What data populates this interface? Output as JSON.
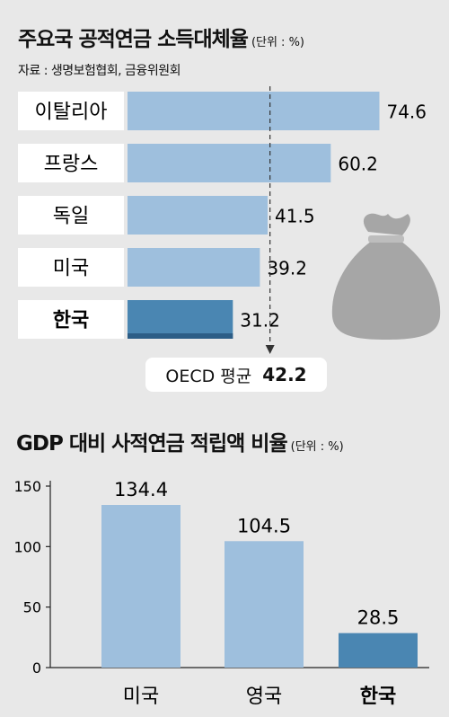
{
  "chart_data": [
    {
      "type": "bar",
      "orientation": "horizontal",
      "title": "주요국 공적연금 소득대체율",
      "unit": "(단위 : %)",
      "source": "자료 : 생명보험협회, 금융위원회",
      "categories": [
        "이탈리아",
        "프랑스",
        "독일",
        "미국",
        "한국"
      ],
      "values": [
        74.6,
        60.2,
        41.5,
        39.2,
        31.2
      ],
      "highlight": "한국",
      "reference_line": {
        "label": "OECD 평균",
        "value": 42.2
      },
      "colors": {
        "bar": "#9ebfdd",
        "highlight_bar": "#4a86b2",
        "highlight_bar_dark": "#2c5d86"
      }
    },
    {
      "type": "bar",
      "orientation": "vertical",
      "title": "GDP 대비 사적연금 적립액 비율",
      "unit": "(단위 : %)",
      "categories": [
        "미국",
        "영국",
        "한국"
      ],
      "values": [
        134.4,
        104.5,
        28.5
      ],
      "highlight": "한국",
      "ylim": [
        0,
        150
      ],
      "yticks": [
        0,
        50,
        100,
        150
      ],
      "colors": {
        "bar": "#9ebfdd",
        "highlight_bar": "#4a86b2"
      }
    }
  ],
  "icons": {
    "decoration": "money-bag-icon"
  }
}
